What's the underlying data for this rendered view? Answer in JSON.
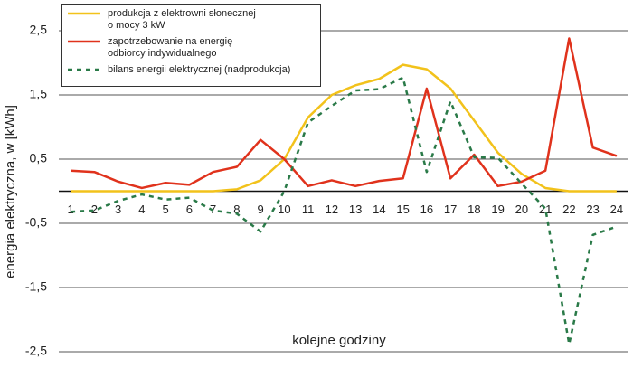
{
  "chart_data": {
    "type": "line",
    "x_label": "kolejne godziny",
    "y_label": "energia elektryczna, w [kWh]",
    "x": [
      1,
      2,
      3,
      4,
      5,
      6,
      7,
      8,
      9,
      10,
      11,
      12,
      13,
      14,
      15,
      16,
      17,
      18,
      19,
      20,
      21,
      22,
      23,
      24
    ],
    "xlim": [
      0.5,
      24.5
    ],
    "ylim": [
      -2.5,
      2.5
    ],
    "yticks": [
      {
        "value": 2.5,
        "label": "2,5"
      },
      {
        "value": 1.5,
        "label": "1,5"
      },
      {
        "value": 0.5,
        "label": "0,5"
      },
      {
        "value": -0.5,
        "label": "-0,5"
      },
      {
        "value": -1.5,
        "label": "-1,5"
      },
      {
        "value": -2.5,
        "label": "-2,5"
      }
    ],
    "grid": true,
    "legend": "upper left",
    "series": [
      {
        "name": "produkcja z elektrowni słonecznej\no mocy 3 kW",
        "color": "#f2c21b",
        "style": "solid",
        "values": [
          0,
          0,
          0,
          0,
          0,
          0,
          0,
          0.03,
          0.17,
          0.5,
          1.15,
          1.5,
          1.65,
          1.75,
          1.97,
          1.9,
          1.6,
          1.1,
          0.6,
          0.27,
          0.05,
          0,
          0,
          0
        ]
      },
      {
        "name": "zapotrzebowanie na energię\nodbiorcy indywidualnego",
        "color": "#e0321c",
        "style": "solid",
        "values": [
          0.32,
          0.3,
          0.15,
          0.05,
          0.13,
          0.1,
          0.3,
          0.38,
          0.8,
          0.5,
          0.08,
          0.17,
          0.08,
          0.16,
          0.2,
          1.6,
          0.2,
          0.57,
          0.08,
          0.15,
          0.32,
          2.38,
          0.68,
          0.55
        ]
      },
      {
        "name": "bilans energii elektrycznej (nadprodukcja)",
        "color": "#2a7a48",
        "style": "dashed",
        "values": [
          -0.32,
          -0.3,
          -0.15,
          -0.05,
          -0.13,
          -0.1,
          -0.3,
          -0.35,
          -0.63,
          0,
          1.07,
          1.33,
          1.57,
          1.59,
          1.77,
          0.3,
          1.4,
          0.53,
          0.52,
          0.12,
          -0.27,
          -2.38,
          -0.68,
          -0.55
        ]
      }
    ]
  }
}
